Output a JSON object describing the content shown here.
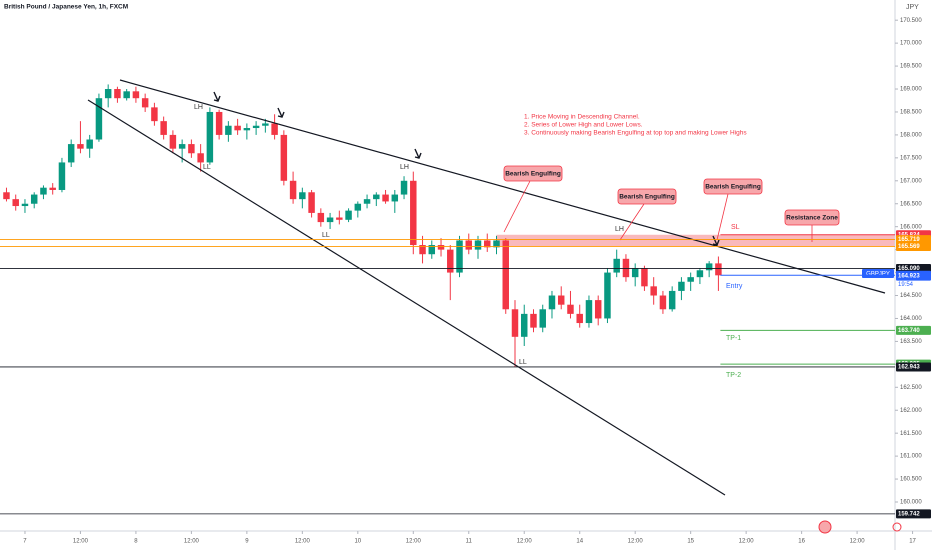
{
  "chart_data": {
    "type": "candlestick",
    "title": "British Pound / Japanese Yen, 1h, FXCM",
    "y_axis_label": "JPY",
    "up_color": "#089981",
    "down_color": "#f23645",
    "grid": false,
    "xlim": [
      -0.7,
      96.1
    ],
    "ylim": [
      159.39,
      170.94
    ],
    "xticks": [
      {
        "value": 2,
        "label": "7"
      },
      {
        "value": 8,
        "label": "12:00"
      },
      {
        "value": 14,
        "label": "8"
      },
      {
        "value": 20,
        "label": "12:00"
      },
      {
        "value": 26,
        "label": "9"
      },
      {
        "value": 32,
        "label": "12:00"
      },
      {
        "value": 38,
        "label": "10"
      },
      {
        "value": 44,
        "label": "12:00"
      },
      {
        "value": 50,
        "label": "11"
      },
      {
        "value": 56,
        "label": "12:00"
      },
      {
        "value": 62,
        "label": "14"
      },
      {
        "value": 68,
        "label": "12:00"
      },
      {
        "value": 74,
        "label": "15"
      },
      {
        "value": 80,
        "label": "12:00"
      },
      {
        "value": 86,
        "label": "16"
      },
      {
        "value": 92,
        "label": "12:00"
      },
      {
        "value": 98,
        "label": "17"
      }
    ],
    "yticks": [
      {
        "value": 160,
        "label": "160.000"
      },
      {
        "value": 160.5,
        "label": "160.500"
      },
      {
        "value": 161,
        "label": "161.000"
      },
      {
        "value": 161.5,
        "label": "161.500"
      },
      {
        "value": 162,
        "label": "162.000"
      },
      {
        "value": 162.5,
        "label": "162.500"
      },
      {
        "value": 163,
        "label": "163.000"
      },
      {
        "value": 163.5,
        "label": "163.500"
      },
      {
        "value": 164,
        "label": "164.000"
      },
      {
        "value": 164.5,
        "label": "164.500"
      },
      {
        "value": 165,
        "label": "165.000"
      },
      {
        "value": 165.5,
        "label": "165.500"
      },
      {
        "value": 166,
        "label": "166.000"
      },
      {
        "value": 166.5,
        "label": "166.500"
      },
      {
        "value": 167,
        "label": "167.000"
      },
      {
        "value": 167.5,
        "label": "167.500"
      },
      {
        "value": 168,
        "label": "168.000"
      },
      {
        "value": 168.5,
        "label": "168.500"
      },
      {
        "value": 169,
        "label": "169.000"
      },
      {
        "value": 169.5,
        "label": "169.500"
      },
      {
        "value": 170,
        "label": "170.000"
      },
      {
        "value": 170.5,
        "label": "170.500"
      }
    ],
    "open": [
      166.75,
      166.6,
      166.45,
      166.5,
      166.7,
      166.85,
      166.8,
      167.4,
      167.8,
      167.7,
      167.9,
      168.8,
      169.0,
      168.8,
      168.95,
      168.8,
      168.6,
      168.3,
      168.0,
      167.7,
      167.8,
      167.6,
      167.4,
      168.5,
      168.0,
      168.2,
      168.1,
      168.15,
      168.2,
      168.25,
      168.0,
      167.0,
      166.6,
      166.75,
      166.3,
      166.1,
      166.2,
      166.15,
      166.35,
      166.5,
      166.6,
      166.7,
      166.55,
      166.7,
      167.0,
      165.6,
      165.4,
      165.6,
      165.5,
      165.0,
      165.7,
      165.5,
      165.7,
      165.55,
      165.7,
      164.2,
      163.6,
      164.1,
      163.8,
      164.2,
      164.5,
      164.3,
      164.1,
      163.9,
      164.4,
      164.0,
      165.0,
      165.3,
      164.9,
      165.1,
      164.7,
      164.5,
      164.2,
      164.6,
      164.8,
      164.9,
      165.05,
      165.2
    ],
    "high": [
      166.85,
      166.7,
      166.6,
      166.75,
      166.9,
      166.95,
      167.5,
      167.9,
      168.3,
      168.0,
      168.9,
      169.1,
      169.05,
      169.0,
      169.05,
      168.9,
      168.7,
      168.4,
      168.1,
      167.9,
      167.9,
      167.8,
      168.6,
      168.55,
      168.3,
      168.35,
      168.25,
      168.3,
      168.35,
      168.45,
      168.1,
      167.2,
      166.85,
      166.8,
      166.4,
      166.3,
      166.35,
      166.4,
      166.55,
      166.7,
      166.75,
      166.8,
      166.8,
      167.1,
      167.2,
      165.8,
      165.7,
      165.75,
      165.6,
      165.8,
      165.85,
      165.8,
      165.85,
      165.8,
      165.75,
      164.4,
      164.3,
      164.2,
      164.3,
      164.6,
      164.7,
      164.6,
      164.3,
      164.5,
      164.5,
      165.1,
      165.5,
      165.4,
      165.2,
      165.15,
      164.9,
      164.6,
      164.7,
      164.9,
      165.0,
      165.1,
      165.25,
      165.35
    ],
    "low": [
      166.55,
      166.35,
      166.3,
      166.4,
      166.6,
      166.7,
      166.75,
      167.3,
      167.6,
      167.5,
      167.85,
      168.6,
      168.7,
      168.75,
      168.7,
      168.5,
      168.2,
      167.9,
      167.6,
      167.4,
      167.5,
      167.2,
      167.35,
      167.9,
      167.85,
      168.0,
      167.9,
      168.0,
      168.05,
      167.9,
      166.9,
      166.5,
      166.4,
      166.2,
      166.0,
      165.95,
      166.05,
      166.1,
      166.2,
      166.4,
      166.45,
      166.5,
      166.3,
      166.6,
      165.4,
      165.2,
      165.3,
      165.35,
      164.4,
      164.9,
      165.4,
      165.3,
      165.45,
      165.4,
      164.1,
      162.95,
      163.4,
      163.7,
      163.7,
      164.0,
      164.2,
      164.0,
      163.8,
      163.8,
      163.85,
      163.9,
      164.9,
      164.8,
      164.7,
      164.6,
      164.3,
      164.1,
      164.15,
      164.4,
      164.6,
      164.75,
      164.9,
      164.6
    ],
    "close": [
      166.6,
      166.45,
      166.5,
      166.7,
      166.85,
      166.8,
      167.4,
      167.8,
      167.7,
      167.9,
      168.8,
      169.0,
      168.8,
      168.95,
      168.8,
      168.6,
      168.3,
      168.0,
      167.7,
      167.8,
      167.6,
      167.4,
      168.5,
      168.0,
      168.2,
      168.1,
      168.15,
      168.2,
      168.25,
      168.0,
      167.0,
      166.6,
      166.75,
      166.3,
      166.1,
      166.2,
      166.15,
      166.35,
      166.5,
      166.6,
      166.7,
      166.55,
      166.7,
      167.0,
      165.6,
      165.4,
      165.6,
      165.5,
      165.0,
      165.7,
      165.5,
      165.7,
      165.55,
      165.7,
      164.2,
      163.6,
      164.1,
      163.8,
      164.2,
      164.5,
      164.3,
      164.1,
      163.9,
      164.4,
      164.0,
      165.0,
      165.3,
      164.9,
      165.1,
      164.7,
      164.5,
      164.2,
      164.6,
      164.8,
      164.9,
      165.05,
      165.2,
      164.94
    ],
    "levels": [
      {
        "value": 165.824,
        "label": "165.824",
        "color": "#f23645",
        "line": "ray"
      },
      {
        "value": 165.719,
        "label": "165.719",
        "color": "#ff9800",
        "line": "full"
      },
      {
        "value": 165.569,
        "label": "165.569",
        "color": "#ff9800",
        "line": "full"
      },
      {
        "value": 165.09,
        "label": "165.090",
        "color": "#131722",
        "line": "full"
      },
      {
        "value": 164.941,
        "label": "164.941",
        "color": "#2962ff",
        "line": "ray"
      },
      {
        "value": 164.923,
        "label": "164.923",
        "color": "#2962ff",
        "line": "none"
      },
      {
        "value": 163.74,
        "label": "163.740",
        "color": "#4caf50",
        "line": "ray"
      },
      {
        "value": 163.005,
        "label": "163.005",
        "color": "#4caf50",
        "line": "ray"
      },
      {
        "value": 162.943,
        "label": "162.943",
        "color": "#131722",
        "line": "full"
      },
      {
        "value": 159.742,
        "label": "159.742",
        "color": "#131722",
        "line": "full"
      }
    ],
    "resistance_zone": {
      "start": 53,
      "top": 165.824,
      "bottom": 165.569,
      "color": "#f7a7ab"
    },
    "symbol_tag": "GBPJPY",
    "countdown": "19:54",
    "notes": [
      "1. Price Moving in Descending Channel.",
      "2. Series of Lower High and Lower Lows.",
      "3. Continuously making Bearish Engulfing at top top and making Lower Highs"
    ],
    "callouts": [
      "Bearish Engulfing",
      "Bearish Engulfing",
      "Bearish Engulfing",
      "Resistance Zone"
    ],
    "swing_labels": [
      "LH",
      "LL",
      "LL",
      "LH",
      "LH",
      "LL"
    ],
    "trade_labels": [
      "SL",
      "Entry",
      "TP-1",
      "TP-2"
    ]
  }
}
